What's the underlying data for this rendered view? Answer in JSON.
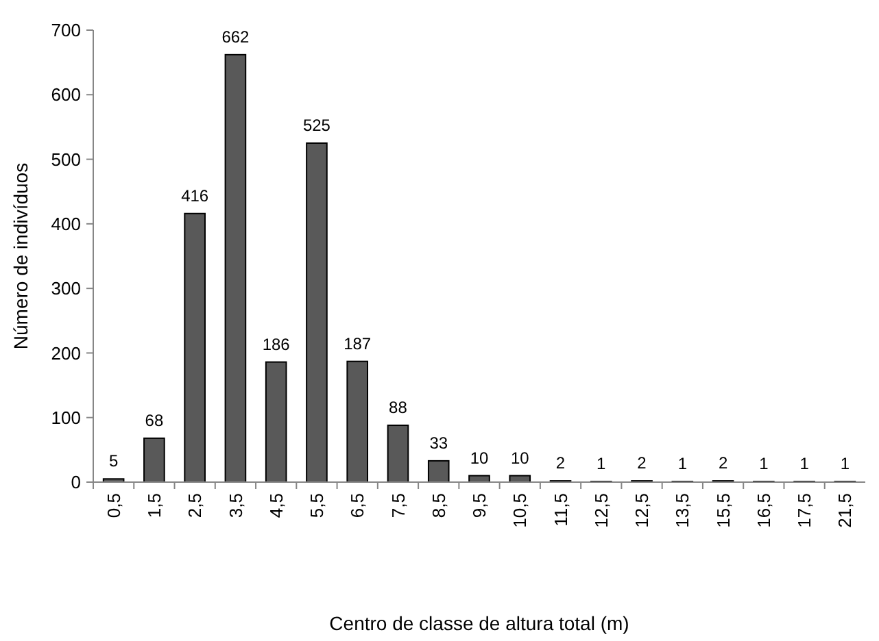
{
  "chart_data": {
    "type": "bar",
    "xlabel": "Centro de classe de altura total (m)",
    "ylabel": "Número de indivíduos",
    "categories": [
      "0,5",
      "1,5",
      "2,5",
      "3,5",
      "4,5",
      "5,5",
      "6,5",
      "7,5",
      "8,5",
      "9,5",
      "10,5",
      "11,5",
      "12,5",
      "12,5",
      "13,5",
      "15,5",
      "16,5",
      "17,5",
      "21,5"
    ],
    "values": [
      5,
      68,
      416,
      662,
      186,
      525,
      187,
      88,
      33,
      10,
      10,
      2,
      1,
      2,
      1,
      2,
      1,
      1,
      1
    ],
    "color": "#595959",
    "ylim": [
      0,
      700
    ],
    "yticks": [
      0,
      100,
      200,
      300,
      400,
      500,
      600,
      700
    ],
    "grid": false,
    "data_labels": true
  }
}
